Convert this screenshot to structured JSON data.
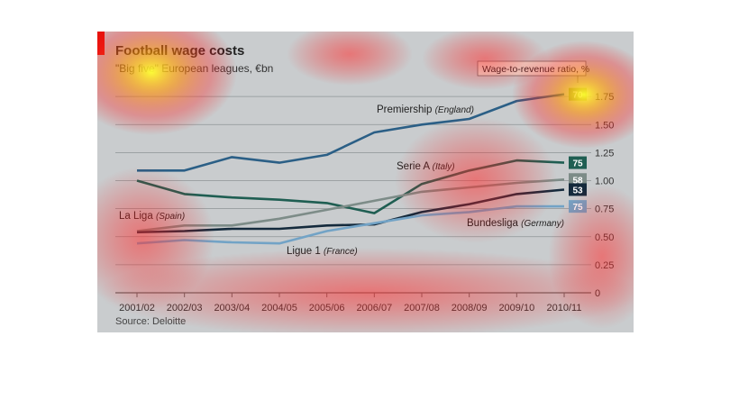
{
  "title": "Football wage costs",
  "subtitle": "\"Big five\" European leagues, €bn",
  "source": "Source: Deloitte",
  "chart_data": {
    "type": "line",
    "categories": [
      "2001/02",
      "2002/03",
      "2003/04",
      "2004/05",
      "2005/06",
      "2006/07",
      "2007/08",
      "2008/09",
      "2009/10",
      "2010/11"
    ],
    "y_ticks": [
      "0",
      "0.25",
      "0.50",
      "0.75",
      "1.00",
      "1.25",
      "1.50",
      "1.75"
    ],
    "ylim": [
      0,
      1.85
    ],
    "y_axis_side": "right",
    "grid": true,
    "ratio_header": "Wage-to-revenue ratio, %",
    "series": [
      {
        "name": "Premiership",
        "country": "(England)",
        "color": "#2b5f86",
        "ratio": "70",
        "badge_color": "#7a9a3a",
        "values": [
          1.09,
          1.09,
          1.21,
          1.16,
          1.23,
          1.43,
          1.5,
          1.55,
          1.71,
          1.77
        ]
      },
      {
        "name": "Serie A",
        "country": "(Italy)",
        "color": "#1f5e52",
        "ratio": "75",
        "badge_color": "#1f5e52",
        "values": [
          1.0,
          0.88,
          0.85,
          0.83,
          0.8,
          0.71,
          0.97,
          1.09,
          1.18,
          1.16
        ]
      },
      {
        "name": "La Liga",
        "country": "(Spain)",
        "color": "#7d8c88",
        "ratio": "58",
        "badge_color": "#7d8c88",
        "values": [
          0.55,
          0.6,
          0.6,
          0.66,
          0.74,
          0.82,
          0.9,
          0.94,
          0.98,
          1.01
        ]
      },
      {
        "name": "Bundesliga",
        "country": "(Germany)",
        "color": "#142a3c",
        "ratio": "53",
        "badge_color": "#142a3c",
        "values": [
          0.54,
          0.55,
          0.57,
          0.57,
          0.6,
          0.61,
          0.72,
          0.79,
          0.88,
          0.92
        ]
      },
      {
        "name": "Ligue 1",
        "country": "(France)",
        "color": "#72a3c6",
        "ratio": "75",
        "badge_color": "#72a3c6",
        "values": [
          0.44,
          0.47,
          0.45,
          0.44,
          0.55,
          0.62,
          0.69,
          0.72,
          0.77,
          0.77
        ]
      }
    ]
  }
}
